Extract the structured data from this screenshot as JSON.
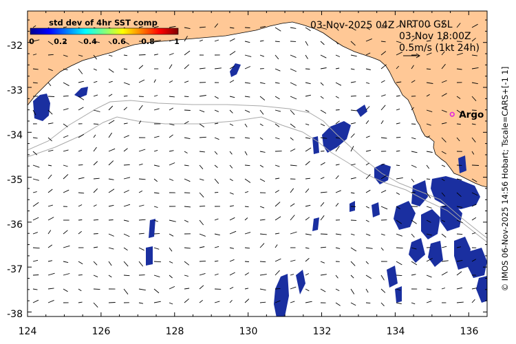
{
  "map": {
    "date_label": "03-Nov-2025 04Z",
    "product_lines": [
      "NRT00 GSL",
      "03-Nov 18:00Z",
      "0.5m/s (1kt 24h)"
    ],
    "credit": "© IMOS 06-Nov-2025 14:56 Hobart; Tscale=CARS+[-1 1]",
    "lon_range": [
      124,
      136.5
    ],
    "lat_range": [
      -38.1,
      -31.3
    ],
    "x_ticks": [
      "124",
      "126",
      "128",
      "130",
      "132",
      "134",
      "136"
    ],
    "y_ticks": [
      "-32",
      "-33",
      "-34",
      "-35",
      "-36",
      "-37",
      "-38"
    ],
    "land_color": "#ffc896",
    "ocean_color": "#ffffff"
  },
  "colorbar": {
    "title": "std dev of 4hr SST comp",
    "ticks": [
      "0",
      "0.2",
      "0.4",
      "0.6",
      "0.8",
      "1"
    ]
  },
  "marker": {
    "label": "Argo",
    "lon": 135.55,
    "lat": -33.6,
    "color": "#e020e0"
  }
}
